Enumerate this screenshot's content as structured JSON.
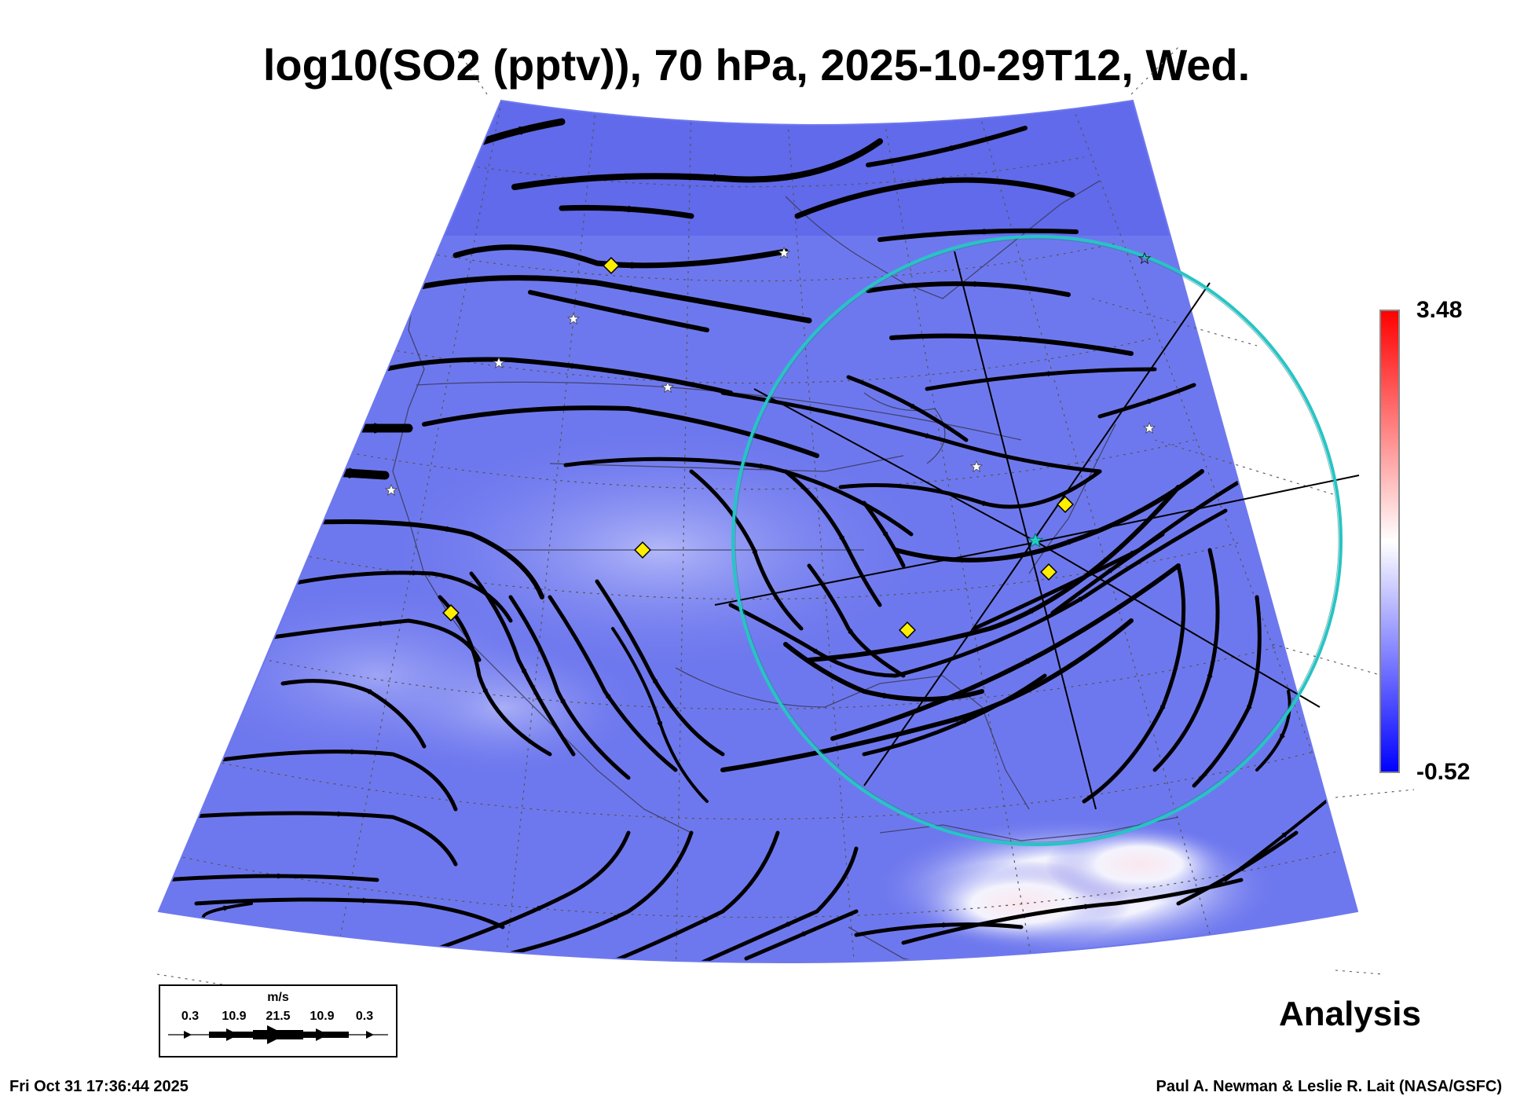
{
  "header": {
    "title": "log10(SO2 (pptv)), 70 hPa, 2025-10-29T12, Wed."
  },
  "colorbar": {
    "max_label": "3.48",
    "min_label": "-0.52",
    "max_value": 3.48,
    "min_value": -0.52,
    "colors": {
      "high": "#ff0000",
      "mid": "#ffffff",
      "low": "#0000ff"
    }
  },
  "map": {
    "field_color": "#6e78ee",
    "field_light_color": "#c6cafa",
    "projection_outline_color": "#000000",
    "range_circle_color": "#27c4c4",
    "highlight_marker_color": "#ffee00",
    "station_marker_color": "#ffffff",
    "center_marker_color": "#1fd0c0",
    "icons": [
      "wind-streamline-arrow",
      "yellow-diamond-marker",
      "white-star-marker",
      "cyan-star-marker",
      "range-circle"
    ]
  },
  "wind_legend": {
    "unit": "m/s",
    "values": [
      "0.3",
      "10.9",
      "21.5",
      "10.9",
      "0.3"
    ]
  },
  "label": {
    "analysis": "Analysis"
  },
  "footer": {
    "timestamp": "Fri Oct 31 17:36:44 2025",
    "credit": "Paul A. Newman & Leslie R. Lait (NASA/GSFC)"
  }
}
